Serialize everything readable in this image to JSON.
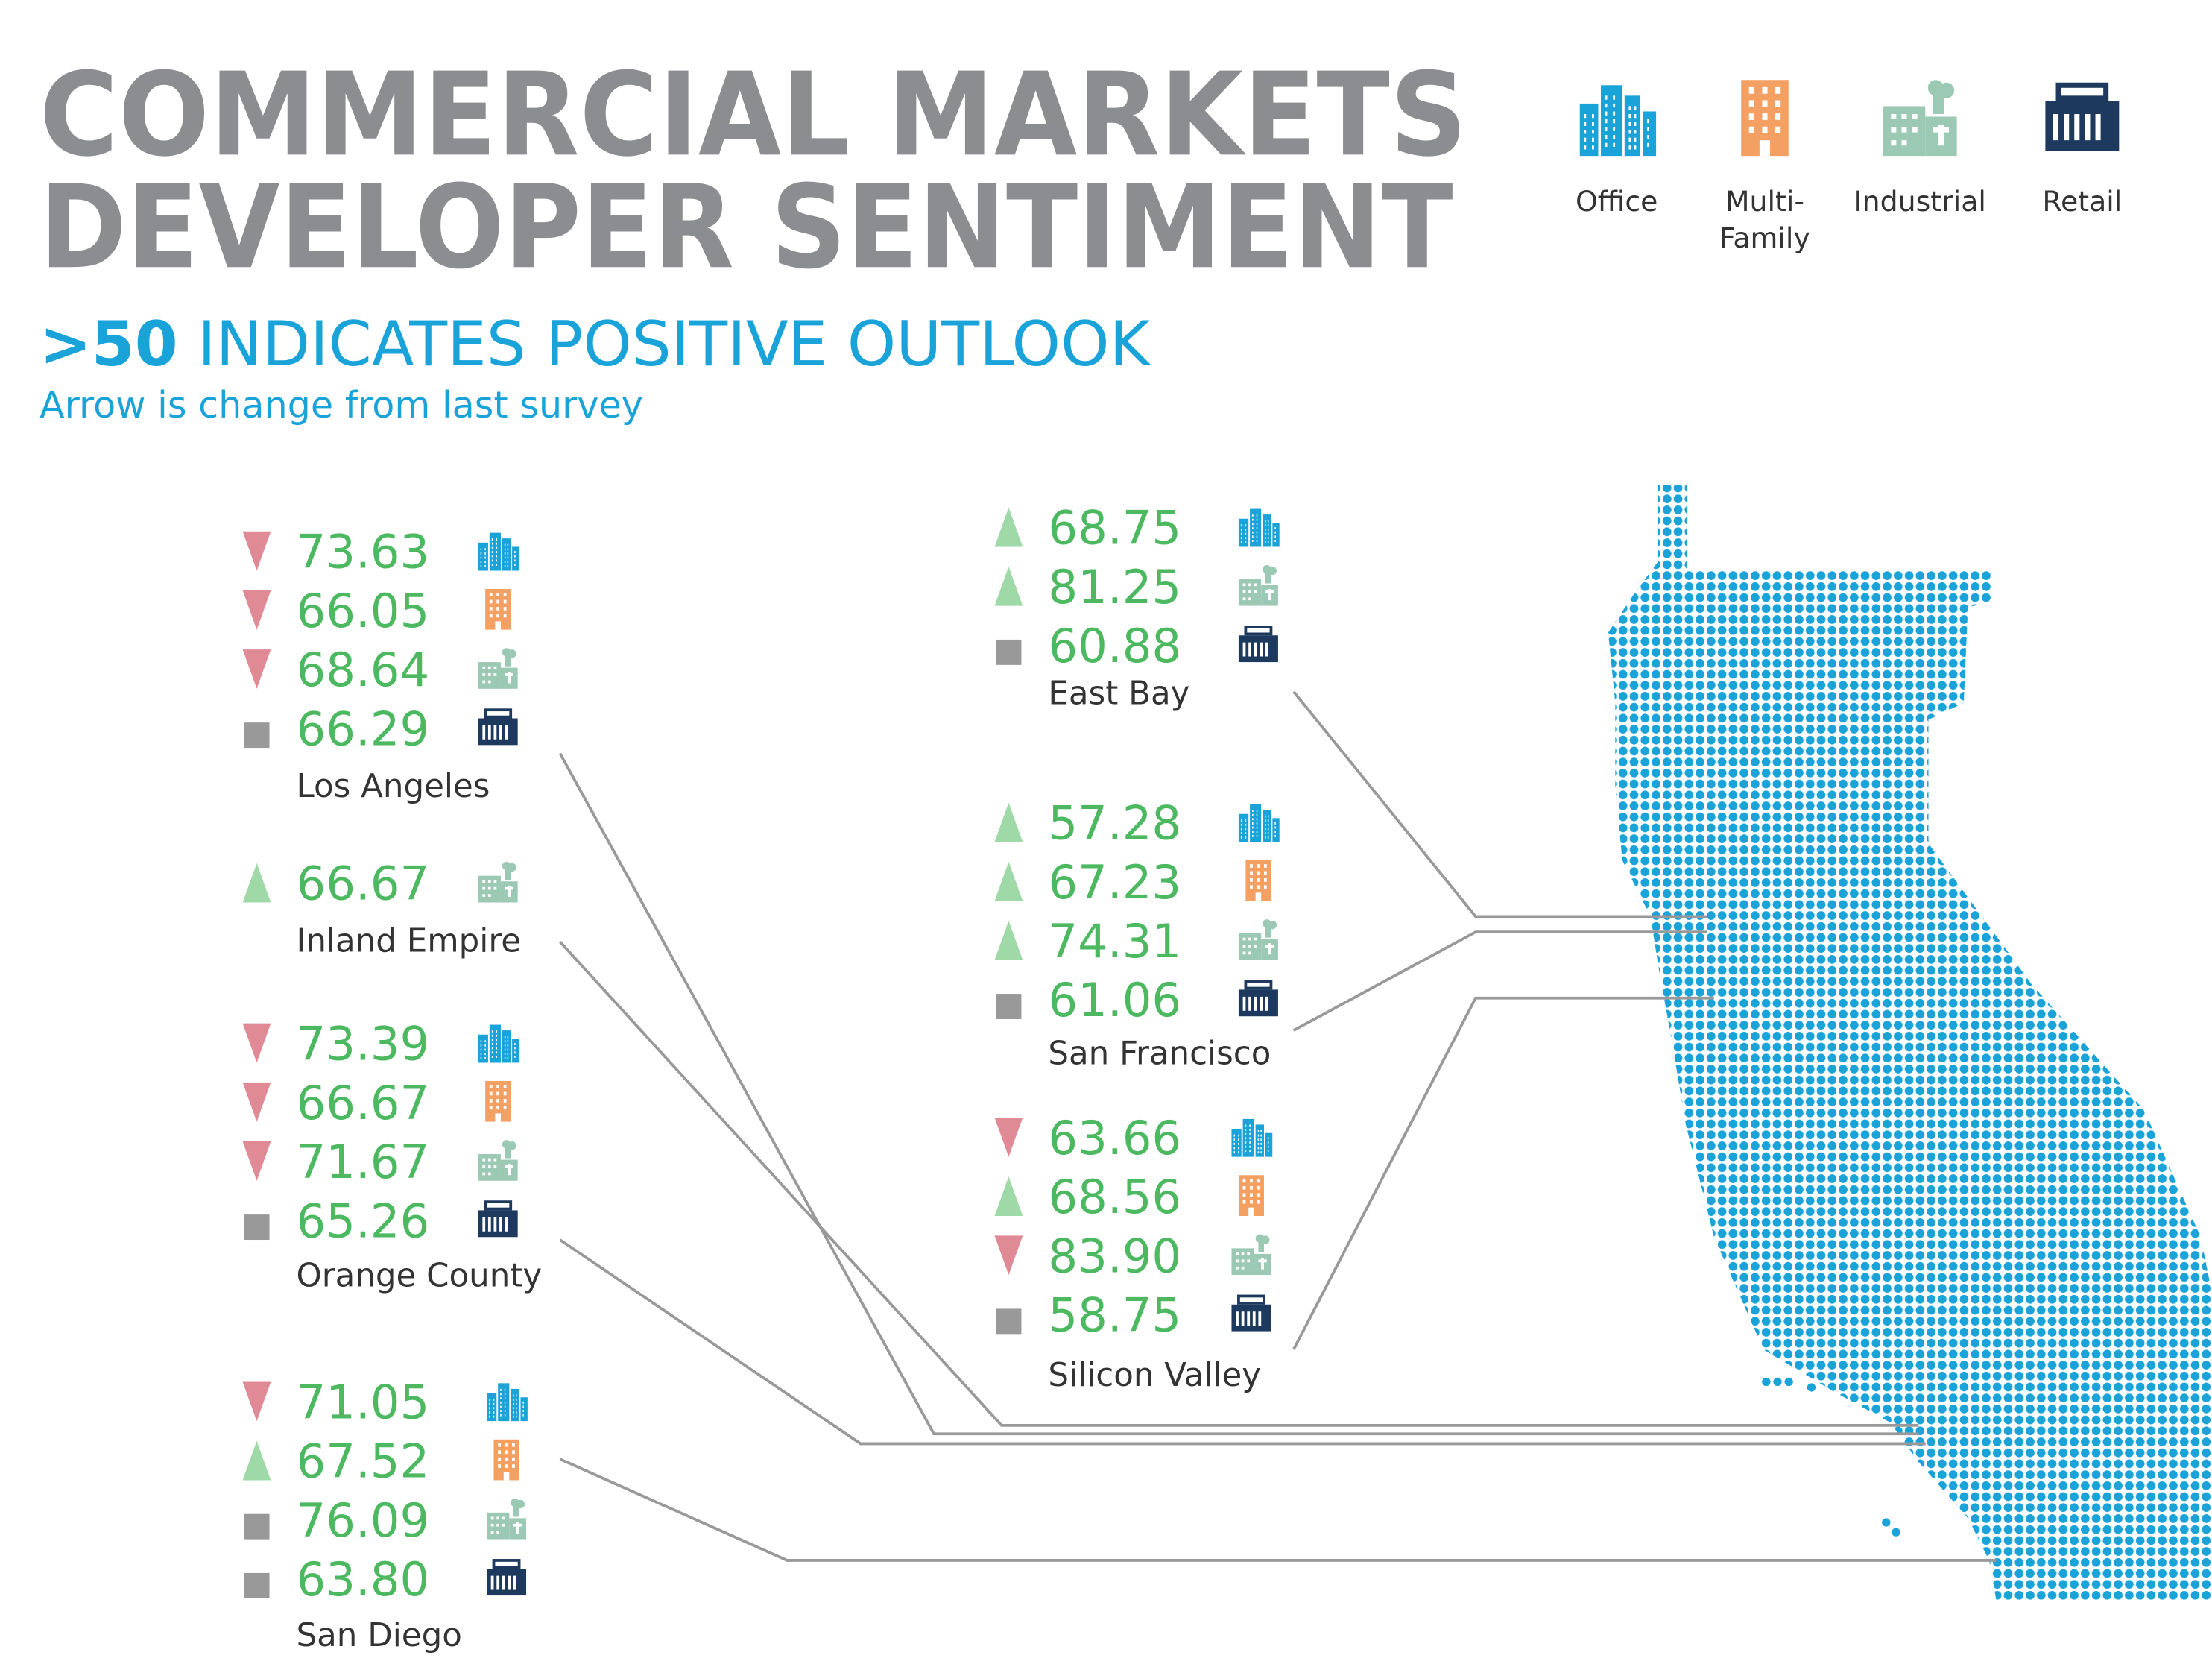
{
  "header": {
    "title_lines": [
      "COMMERCIAL MARKETS",
      "DEVELOPER SENTIMENT"
    ],
    "subtitle_highlight": ">50",
    "subtitle": "INDICATES POSITIVE OUTLOOK",
    "note": "Arrow is change from last survey"
  },
  "legend": [
    {
      "icon": "office",
      "lines": [
        "Office"
      ]
    },
    {
      "icon": "multi",
      "lines": [
        "Multi-",
        "Family"
      ]
    },
    {
      "icon": "industrial",
      "lines": [
        "Industrial"
      ]
    },
    {
      "icon": "retail",
      "lines": [
        "Retail"
      ]
    }
  ],
  "regions": [
    {
      "name": "Los Angeles",
      "rows": [
        {
          "trend": "down",
          "value": "73.63",
          "icon": "office"
        },
        {
          "trend": "down",
          "value": "66.05",
          "icon": "multi"
        },
        {
          "trend": "down",
          "value": "68.64",
          "icon": "industrial"
        },
        {
          "trend": "same",
          "value": "66.29",
          "icon": "retail"
        }
      ]
    },
    {
      "name": "Inland Empire",
      "rows": [
        {
          "trend": "up",
          "value": "66.67",
          "icon": "industrial"
        }
      ]
    },
    {
      "name": "Orange County",
      "rows": [
        {
          "trend": "down",
          "value": "73.39",
          "icon": "office"
        },
        {
          "trend": "down",
          "value": "66.67",
          "icon": "multi"
        },
        {
          "trend": "down",
          "value": "71.67",
          "icon": "industrial"
        },
        {
          "trend": "same",
          "value": "65.26",
          "icon": "retail"
        }
      ]
    },
    {
      "name": "San Diego",
      "rows": [
        {
          "trend": "down",
          "value": "71.05",
          "icon": "office"
        },
        {
          "trend": "up",
          "value": "67.52",
          "icon": "multi"
        },
        {
          "trend": "same",
          "value": "76.09",
          "icon": "industrial"
        },
        {
          "trend": "same",
          "value": "63.80",
          "icon": "retail"
        }
      ]
    },
    {
      "name": "East Bay",
      "rows": [
        {
          "trend": "up",
          "value": "68.75",
          "icon": "office"
        },
        {
          "trend": "up",
          "value": "81.25",
          "icon": "industrial"
        },
        {
          "trend": "same",
          "value": "60.88",
          "icon": "retail"
        }
      ]
    },
    {
      "name": "San Francisco",
      "rows": [
        {
          "trend": "up",
          "value": "57.28",
          "icon": "office"
        },
        {
          "trend": "up",
          "value": "67.23",
          "icon": "multi"
        },
        {
          "trend": "up",
          "value": "74.31",
          "icon": "industrial"
        },
        {
          "trend": "same",
          "value": "61.06",
          "icon": "retail"
        }
      ]
    },
    {
      "name": "Silicon Valley",
      "rows": [
        {
          "trend": "down",
          "value": "63.66",
          "icon": "office"
        },
        {
          "trend": "up",
          "value": "68.56",
          "icon": "multi"
        },
        {
          "trend": "down",
          "value": "83.90",
          "icon": "industrial"
        },
        {
          "trend": "same",
          "value": "58.75",
          "icon": "retail"
        }
      ]
    }
  ]
}
